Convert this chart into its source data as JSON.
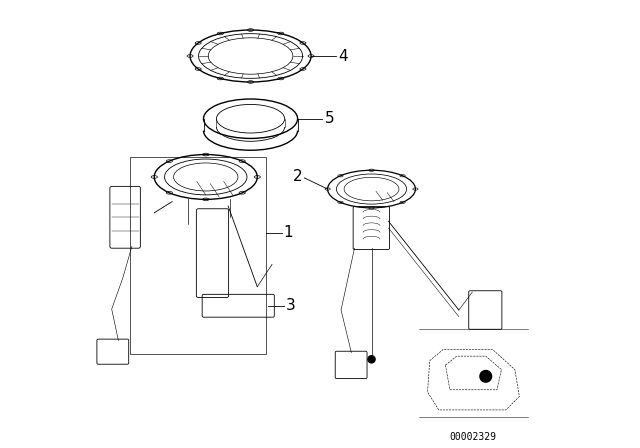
{
  "background_color": "#ffffff",
  "line_color": "#000000",
  "label_fontsize": 11,
  "watermark": "00002329",
  "figsize": [
    6.4,
    4.48
  ],
  "dpi": 100
}
